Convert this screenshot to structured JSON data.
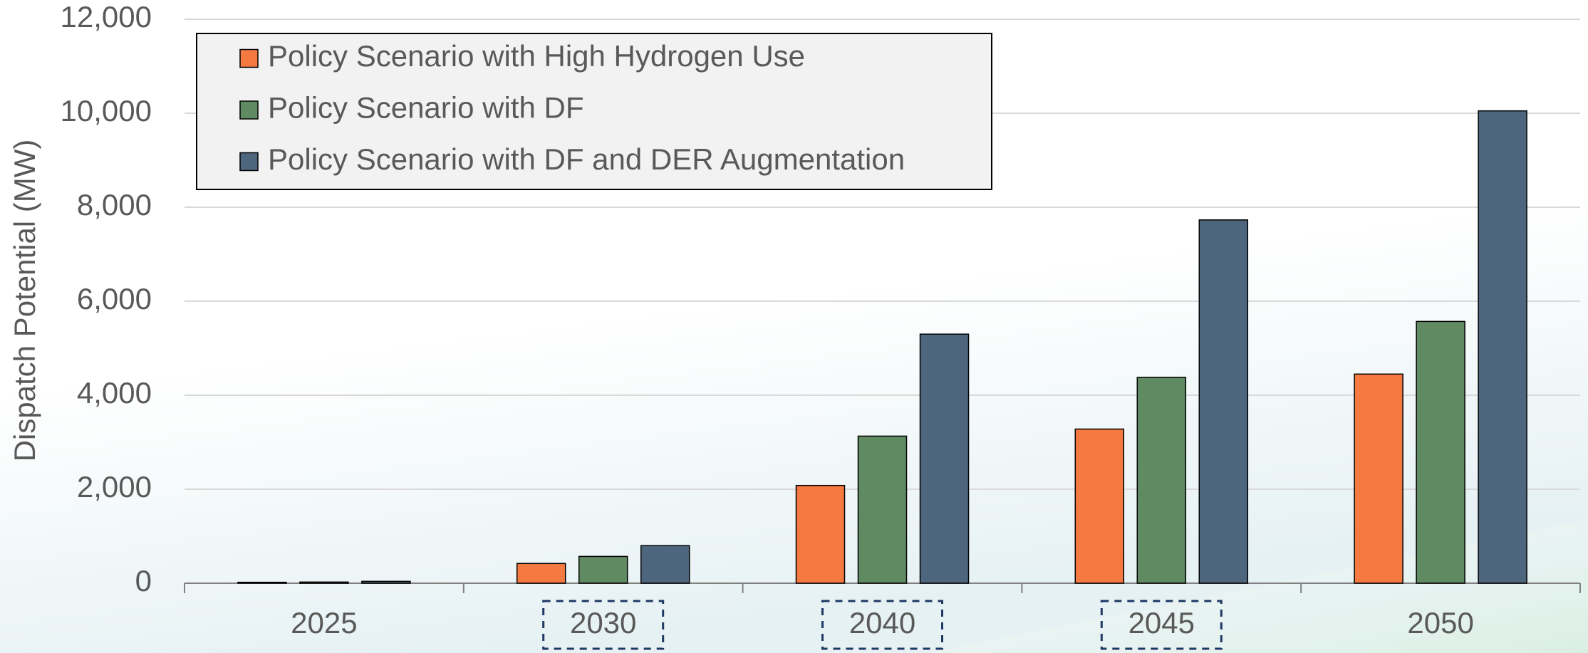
{
  "chart_data": {
    "type": "bar",
    "y_axis_label": "Dispatch Potential (MW)",
    "categories": [
      "2025",
      "2030",
      "2040",
      "2045",
      "2050"
    ],
    "series": [
      {
        "name": "Policy Scenario with High Hydrogen Use",
        "color": "#f47a42",
        "values": [
          20,
          420,
          2080,
          3280,
          4450
        ]
      },
      {
        "name": "Policy Scenario with DF",
        "color": "#5f8a62",
        "values": [
          25,
          570,
          3130,
          4380,
          5570
        ]
      },
      {
        "name": "Policy Scenario with DF and DER Augmentation",
        "color": "#4d667e",
        "values": [
          40,
          800,
          5300,
          7730,
          10050
        ]
      }
    ],
    "ylim": [
      0,
      12000
    ],
    "yticks": [
      0,
      {
        "value": 2000,
        "label": "2,000"
      },
      {
        "value": 4000,
        "label": "4,000"
      },
      {
        "value": 6000,
        "label": "6,000"
      },
      {
        "value": 8000,
        "label": "8,000"
      },
      {
        "value": 10000,
        "label": "10,000"
      },
      {
        "value": 12000,
        "label": "12,000"
      }
    ],
    "grid": true,
    "legend": "upper left"
  }
}
